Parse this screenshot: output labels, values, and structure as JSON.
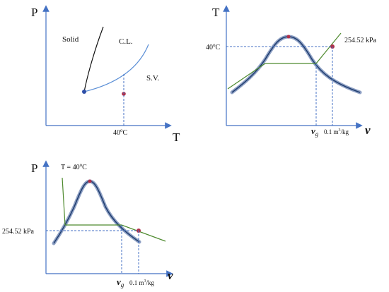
{
  "colors": {
    "axis": "#4472c4",
    "dashed": "#4472c4",
    "dome_outer": "#8ea0c4",
    "dome_inner": "#1f3d6e",
    "green": "#4e8a2e",
    "point_red": "#b0304a",
    "point_blue": "#2e4fa8",
    "curve_black": "#111111",
    "curve_blue": "#5b8fd6"
  },
  "panel_pt": {
    "y_axis_label": "P",
    "x_axis_label": "T",
    "region_solid": "Solid",
    "region_cl": "C.L.",
    "region_sv": "S.V.",
    "x_tick_label": "40",
    "x_tick_sup": "o",
    "x_tick_unit": "C"
  },
  "panel_tv": {
    "y_axis_label": "T",
    "x_axis_label": "v",
    "y_tick_label": "40",
    "y_tick_sup": "o",
    "y_tick_unit": "C",
    "point_label": "254.52 kPa",
    "vg_label": "v",
    "vg_sub": "g",
    "v_value_label": "0.1 m",
    "v_value_sup": "3",
    "v_value_unit": "/kg"
  },
  "panel_pv": {
    "y_axis_label": "P",
    "x_axis_label": "v",
    "isotherm_label": "T = 40",
    "isotherm_sup": "o",
    "isotherm_unit": "C",
    "y_tick_label": "254.52 kPa",
    "vg_label": "v",
    "vg_sub": "g",
    "v_value_label": "0.1 m",
    "v_value_sup": "3",
    "v_value_unit": "/kg"
  }
}
